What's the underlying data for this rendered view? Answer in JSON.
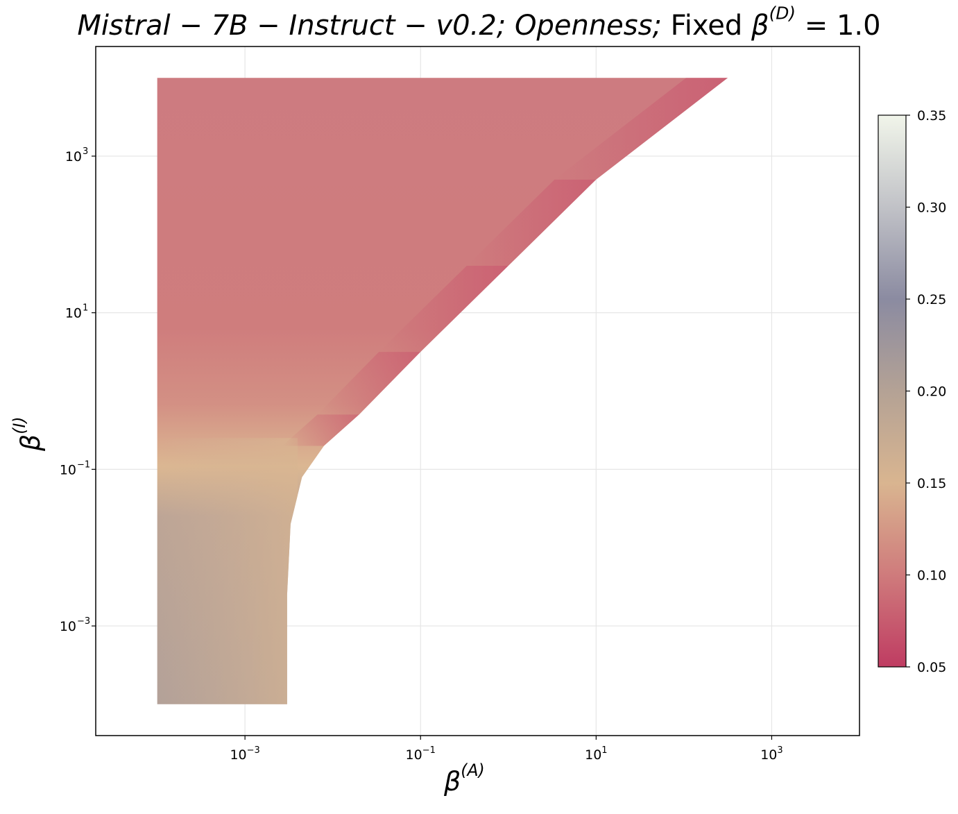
{
  "title": {
    "model": "Mistral − 7B − Instruct − v0.2;",
    "trait": "Openness;",
    "fixed": "Fixed",
    "fixed_symbol": "β",
    "fixed_sup": "(D)",
    "fixed_value": "= 1.0"
  },
  "chart_data": {
    "type": "heatmap",
    "title": "Mistral−7B−Instruct−v0.2; Openness; Fixed β(D) = 1.0",
    "xlabel": "β(A)",
    "ylabel": "β(I)",
    "xscale": "log",
    "yscale": "log",
    "xlim_log10": [
      -4.7,
      4.0
    ],
    "ylim_log10": [
      -4.4,
      4.4
    ],
    "x_ticks_exponent": [
      -3,
      -1,
      1,
      3
    ],
    "y_ticks_exponent": [
      -3,
      -1,
      1,
      3
    ],
    "x_tick_labels": [
      "10^-3",
      "10^-1",
      "10^1",
      "10^3"
    ],
    "y_tick_labels": [
      "10^-3",
      "10^-1",
      "10^1",
      "10^3"
    ],
    "data_extent_log10": {
      "x": [
        -4.0,
        2.5
      ],
      "y": [
        -4.0,
        4.0
      ]
    },
    "region_boundary_log10": [
      [
        -2.52,
        -4.0
      ],
      [
        -2.52,
        -2.6
      ],
      [
        -2.48,
        -1.7
      ],
      [
        -2.35,
        -1.1
      ],
      [
        -2.1,
        -0.7
      ],
      [
        -1.7,
        -0.3
      ],
      [
        -1.0,
        0.5
      ],
      [
        0.0,
        1.6
      ],
      [
        1.0,
        2.7
      ],
      [
        2.5,
        4.0
      ]
    ],
    "colorbar": {
      "min": 0.05,
      "max": 0.35,
      "ticks": [
        0.05,
        0.1,
        0.15,
        0.2,
        0.25,
        0.3,
        0.35
      ],
      "tick_labels": [
        "0.05",
        "0.10",
        "0.15",
        "0.20",
        "0.25",
        "0.30",
        "0.35"
      ],
      "colormap_stops": [
        {
          "value": 0.05,
          "color": "#bf3c62"
        },
        {
          "value": 0.1,
          "color": "#cf7b7c"
        },
        {
          "value": 0.15,
          "color": "#d9b590"
        },
        {
          "value": 0.2,
          "color": "#b4a295"
        },
        {
          "value": 0.25,
          "color": "#8b8ba1"
        },
        {
          "value": 0.3,
          "color": "#c1c2c7"
        },
        {
          "value": 0.35,
          "color": "#f1f5ea"
        }
      ]
    },
    "grid": true,
    "value_samples": [
      {
        "x_log10": -3.5,
        "y_log10": -3.5,
        "value": 0.195
      },
      {
        "x_log10": -2.7,
        "y_log10": -3.0,
        "value": 0.175
      },
      {
        "x_log10": -3.5,
        "y_log10": -1.0,
        "value": 0.15
      },
      {
        "x_log10": -3.0,
        "y_log10": 0.5,
        "value": 0.11
      },
      {
        "x_log10": -3.0,
        "y_log10": 3.0,
        "value": 0.1
      },
      {
        "x_log10": 1.5,
        "y_log10": 3.0,
        "value": 0.085
      },
      {
        "x_log10": 0.0,
        "y_log10": 1.7,
        "value": 0.06
      }
    ]
  }
}
